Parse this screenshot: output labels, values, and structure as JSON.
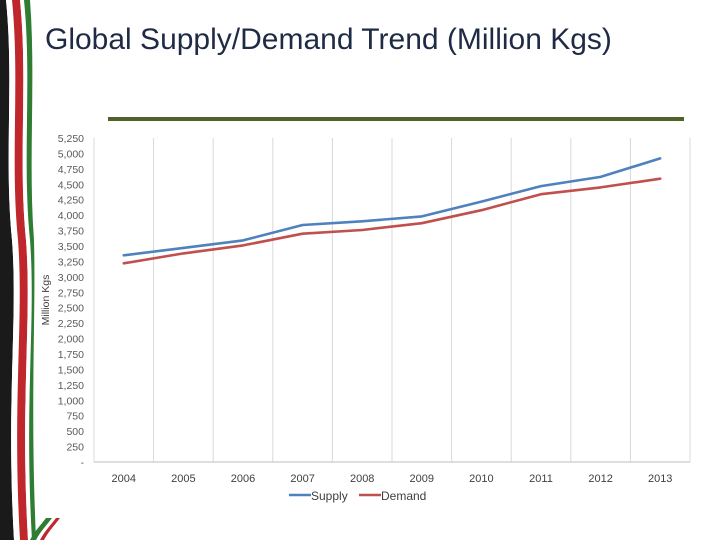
{
  "slide": {
    "title": "Global Supply/Demand Trend (Million Kgs)"
  },
  "colors": {
    "supply": "#4f81bd",
    "demand": "#c0504d",
    "rule": "#4f6228",
    "grid": "#d9d9d9"
  },
  "chart_data": {
    "type": "line",
    "title": "",
    "xlabel": "",
    "ylabel": "Million Kgs",
    "categories": [
      "2004",
      "2005",
      "2006",
      "2007",
      "2008",
      "2009",
      "2010",
      "2011",
      "2012",
      "2013"
    ],
    "series": [
      {
        "name": "Supply",
        "values": [
          3350,
          3470,
          3590,
          3840,
          3900,
          3980,
          4220,
          4470,
          4620,
          4920
        ]
      },
      {
        "name": "Demand",
        "values": [
          3220,
          3380,
          3510,
          3700,
          3760,
          3870,
          4080,
          4340,
          4450,
          4590
        ]
      }
    ],
    "ylim": [
      0,
      5250
    ],
    "yticks": [
      0,
      250,
      500,
      750,
      1000,
      1250,
      1500,
      1750,
      2000,
      2250,
      2500,
      2750,
      3000,
      3250,
      3500,
      3750,
      4000,
      4250,
      4500,
      4750,
      5000,
      5250
    ],
    "ytick_labels": [
      "-",
      "250",
      "500",
      "750",
      "1,000",
      "1,250",
      "1,500",
      "1,750",
      "2,000",
      "2,250",
      "2,500",
      "2,750",
      "3,000",
      "3,250",
      "3,500",
      "3,750",
      "4,000",
      "4,250",
      "4,500",
      "4,750",
      "5,000",
      "5,250"
    ],
    "grid": true,
    "legend_position": "bottom"
  }
}
